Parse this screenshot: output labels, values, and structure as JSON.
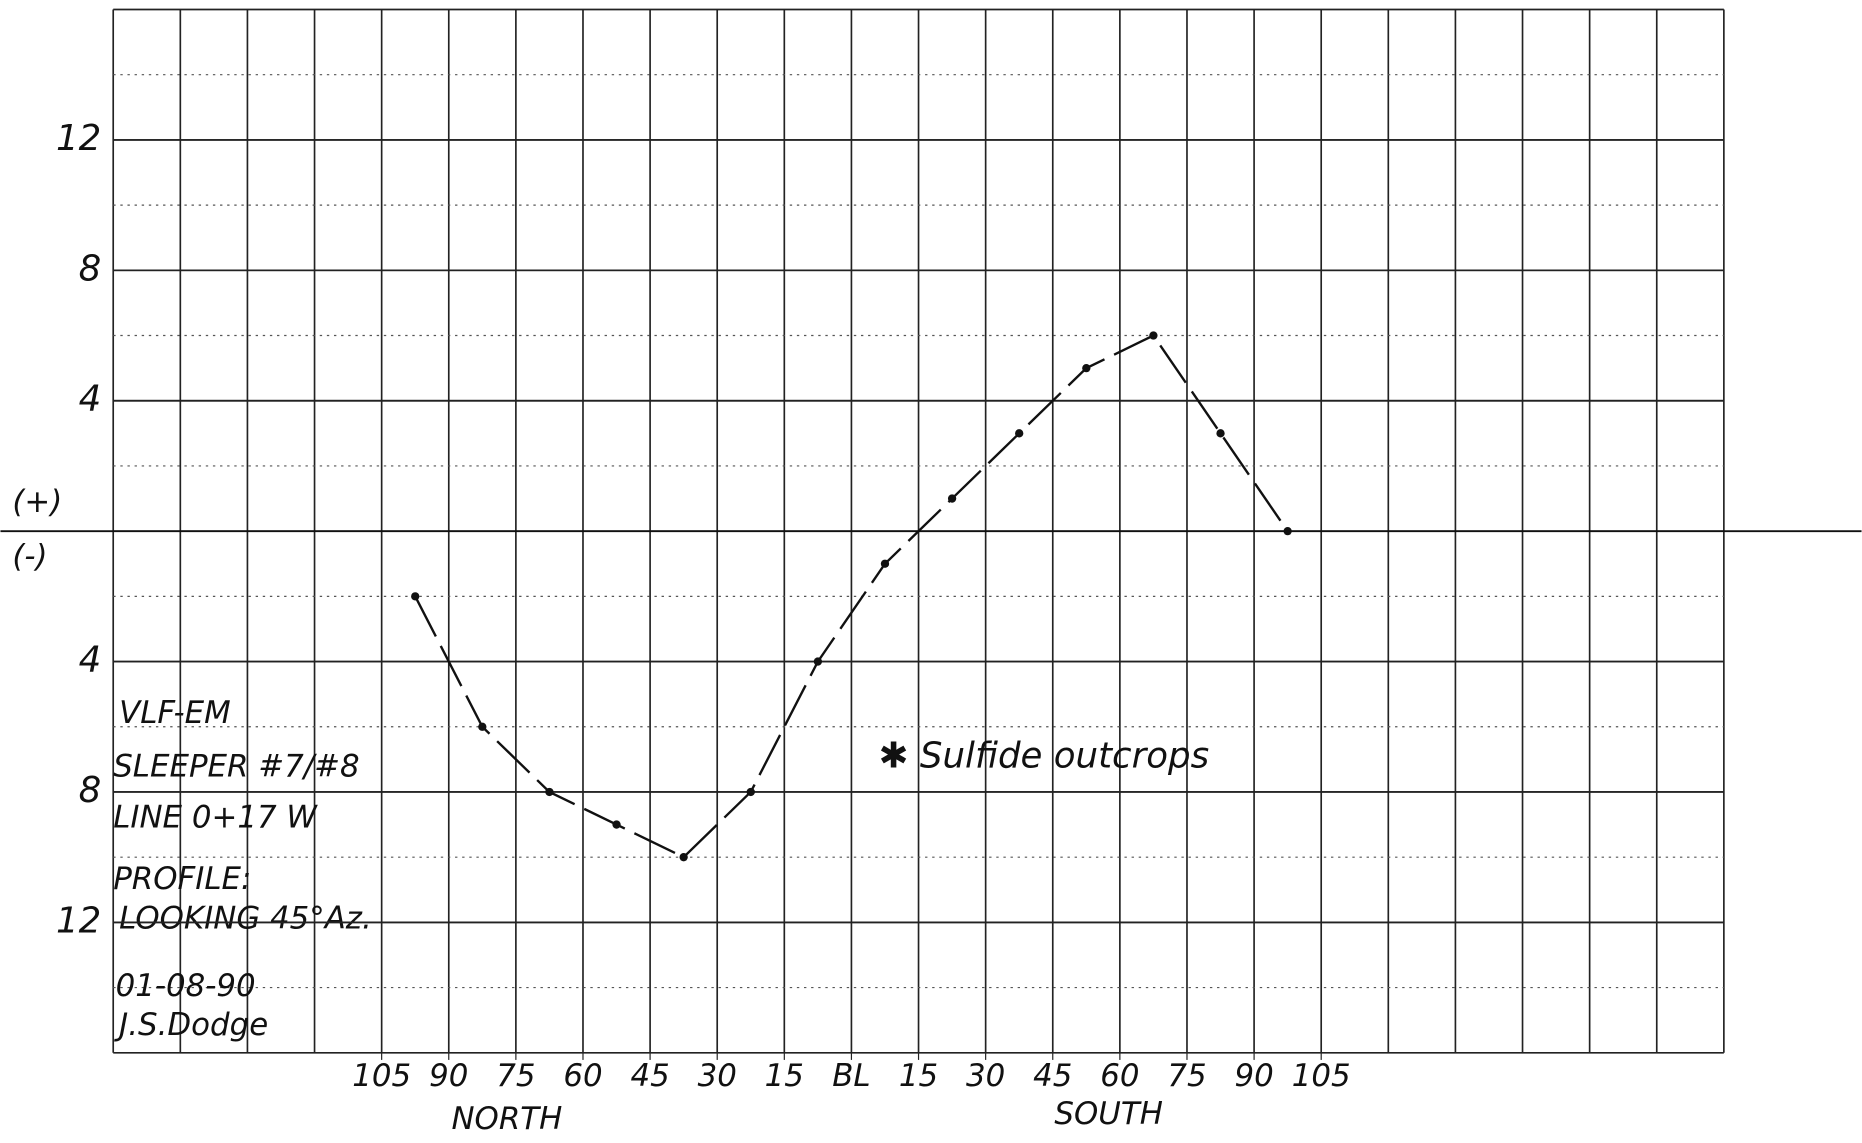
{
  "chart_data": {
    "type": "line",
    "x": [
      -97.5,
      -82.5,
      -67.5,
      -52.5,
      -37.5,
      -22.5,
      -7.5,
      7.5,
      22.5,
      37.5,
      52.5,
      67.5,
      82.5,
      97.5
    ],
    "series": [
      {
        "color": "#111111",
        "values": [
          -2,
          -6,
          -8,
          -9,
          -10,
          -8,
          -4,
          -1,
          1,
          3,
          5,
          6,
          3,
          0
        ]
      }
    ],
    "xlim": [
      -165,
      195
    ],
    "xticks": [
      {
        "value": -105,
        "label": "105"
      },
      {
        "value": -90,
        "label": "90"
      },
      {
        "value": -75,
        "label": "75"
      },
      {
        "value": -60,
        "label": "60"
      },
      {
        "value": -45,
        "label": "45"
      },
      {
        "value": -30,
        "label": "30"
      },
      {
        "value": -15,
        "label": "15"
      },
      {
        "value": 0,
        "label": "BL"
      },
      15,
      30,
      45,
      60,
      75,
      90,
      105
    ],
    "ylim": [
      -16,
      16
    ],
    "yticks": [
      12,
      8,
      4,
      {
        "value": -4,
        "label": "4"
      },
      {
        "value": -8,
        "label": "8"
      },
      {
        "value": -12,
        "label": "12"
      }
    ],
    "sign_labels": [
      "(+)",
      "(-)"
    ],
    "direction_labels": [
      "NORTH",
      "SOUTH"
    ],
    "annotations": [
      "VLF-EM",
      "SLEEPER #7/#8",
      "LINE 0+17 W",
      "PROFILE:",
      "LOOKING 45°Az.",
      "01-08-90",
      "J.S.Dodge"
    ],
    "marker_note": "✱ Sulfide outcrops"
  }
}
